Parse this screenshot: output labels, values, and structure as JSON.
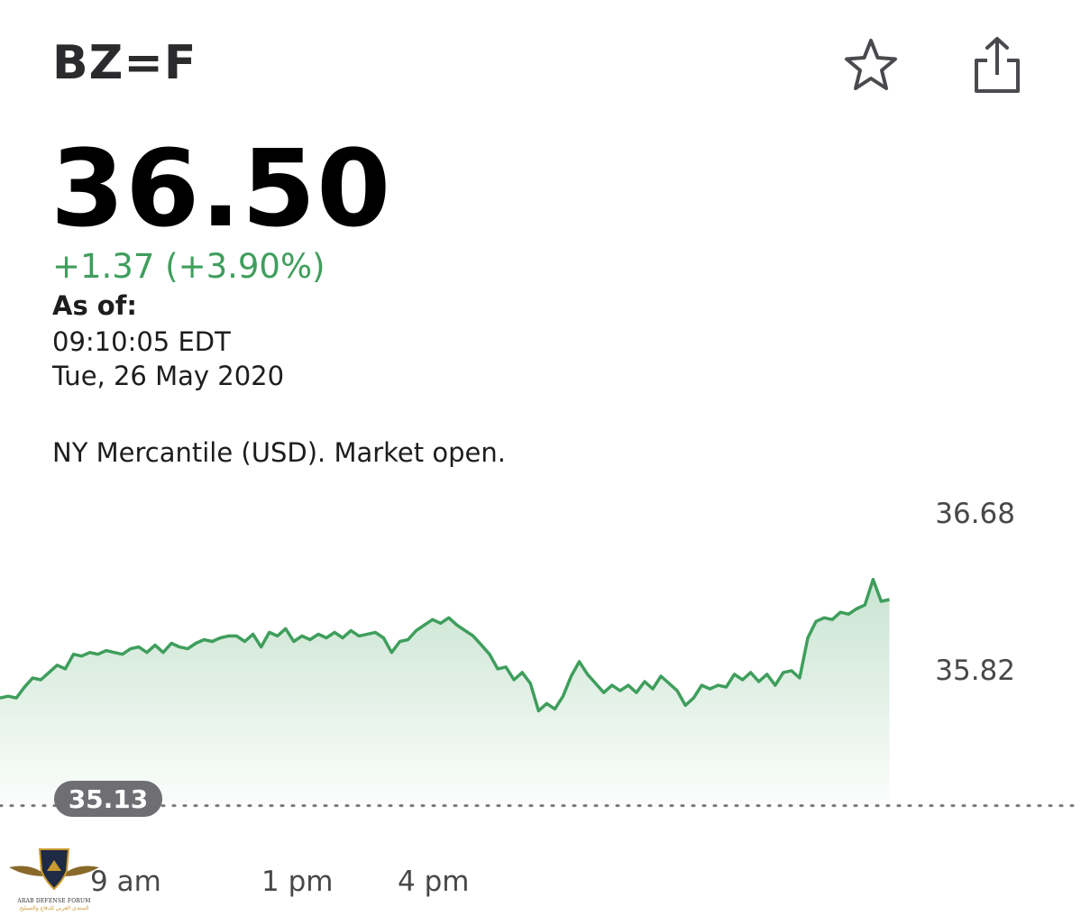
{
  "header": {
    "symbol": "BZ=F",
    "icons": [
      "star-icon",
      "share-icon"
    ]
  },
  "quote": {
    "price": "36.50",
    "change": "+1.37 (+3.90%)",
    "as_of_label": "As of:",
    "as_of_time": "09:10:05 EDT",
    "as_of_date": "Tue, 26 May 2020",
    "market_status": "NY Mercantile (USD). Market open."
  },
  "colors": {
    "positive": "#3f9e5c",
    "badge": "#6e6e73"
  },
  "chart_data": {
    "type": "area",
    "y_ticks": [
      "36.68",
      "35.82"
    ],
    "previous_close": 35.13,
    "previous_close_label": "35.13",
    "x_ticks": [
      "9 am",
      "1 pm",
      "4 pm"
    ],
    "x_range_hours": [
      7,
      17
    ],
    "series": [
      {
        "values": [
          35.72,
          35.73,
          35.72,
          35.78,
          35.83,
          35.82,
          35.86,
          35.9,
          35.88,
          35.96,
          35.95,
          35.97,
          35.96,
          35.98,
          35.97,
          35.96,
          35.99,
          36.0,
          35.97,
          36.01,
          35.97,
          36.02,
          36.0,
          35.99,
          36.02,
          36.04,
          36.03,
          36.05,
          36.06,
          36.06,
          36.03,
          36.07,
          36.0,
          36.08,
          36.06,
          36.1,
          36.03,
          36.06,
          36.04,
          36.07,
          36.05,
          36.08,
          36.05,
          36.09,
          36.06,
          36.07,
          36.08,
          36.05,
          35.97,
          36.03,
          36.04,
          36.09,
          36.12,
          36.15,
          36.13,
          36.16,
          36.12,
          36.09,
          36.06,
          36.01,
          35.96,
          35.88,
          35.89,
          35.82,
          35.86,
          35.8,
          35.65,
          35.69,
          35.66,
          35.73,
          35.84,
          35.92,
          35.85,
          35.8,
          35.75,
          35.79,
          35.76,
          35.79,
          35.75,
          35.81,
          35.77,
          35.84,
          35.8,
          35.76,
          35.68,
          35.72,
          35.79,
          35.77,
          35.79,
          35.78,
          35.85,
          35.82,
          35.86,
          35.81,
          35.85,
          35.79,
          35.86,
          35.87,
          35.83,
          36.05,
          36.14,
          36.16,
          36.15,
          36.19,
          36.18,
          36.21,
          36.23,
          36.37,
          36.25,
          36.26
        ]
      }
    ],
    "last_price_time": 16.05,
    "grid": false
  }
}
